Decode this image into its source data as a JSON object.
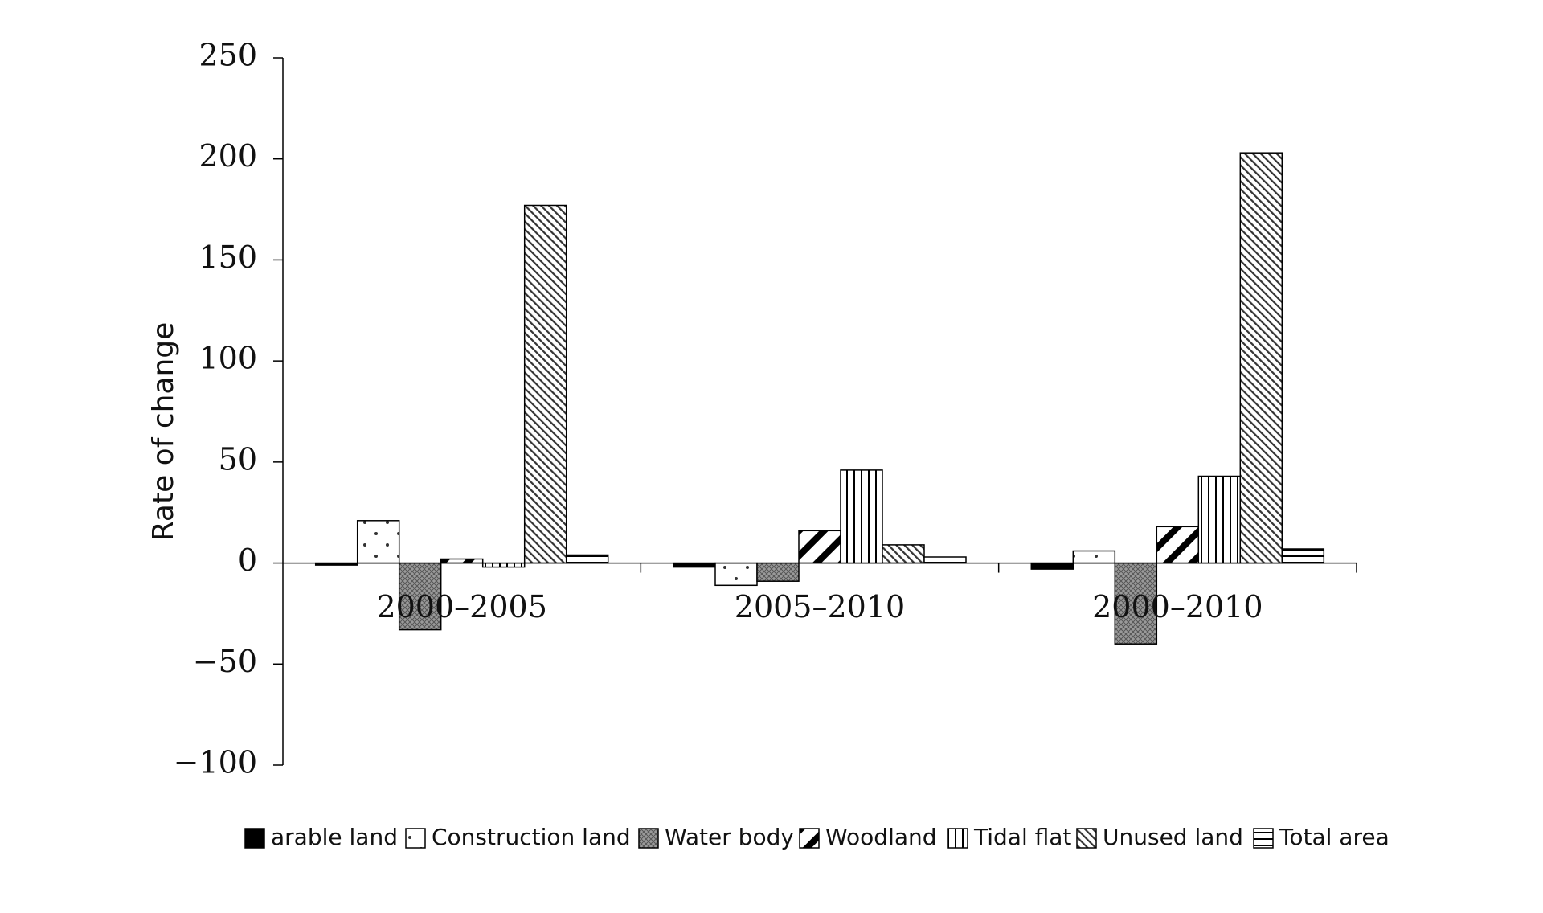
{
  "chart_data": {
    "type": "bar",
    "title": "",
    "xlabel": "",
    "ylabel": "Rate of change",
    "ylim": [
      -100,
      250
    ],
    "yticks": [
      250,
      200,
      150,
      100,
      50,
      0,
      -50,
      -100
    ],
    "ytick_labels": [
      "250",
      "200",
      "150",
      "100",
      "50",
      "0",
      "−50",
      "−100"
    ],
    "categories": [
      "2000–2005",
      "2005–2010",
      "2000–2010"
    ],
    "grid": false,
    "legend_position": "bottom",
    "series": [
      {
        "name": "arable land",
        "pattern": "solid-black",
        "values": [
          -1,
          -2,
          -3
        ]
      },
      {
        "name": "Construction land",
        "pattern": "dots",
        "values": [
          21,
          -11,
          6
        ]
      },
      {
        "name": "Water body",
        "pattern": "crosshatch",
        "values": [
          -33,
          -9,
          -40
        ]
      },
      {
        "name": "Woodland",
        "pattern": "wide-diagonal",
        "values": [
          2,
          16,
          18
        ]
      },
      {
        "name": "Tidal flat",
        "pattern": "vertical-lines",
        "values": [
          -2,
          46,
          43
        ]
      },
      {
        "name": "Unused land",
        "pattern": "fine-diagonal",
        "values": [
          177,
          9,
          203
        ]
      },
      {
        "name": "Total area",
        "pattern": "horizontal-lines",
        "values": [
          4,
          3,
          7
        ]
      }
    ]
  }
}
